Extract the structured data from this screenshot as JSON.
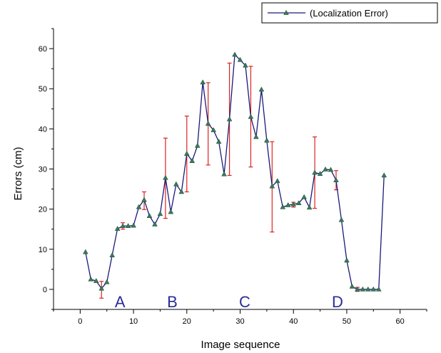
{
  "chart_data": {
    "type": "line",
    "title": "",
    "xlabel": "Image sequence",
    "ylabel": "Errors (cm)",
    "xlim": [
      -5,
      65
    ],
    "ylim": [
      -5,
      65
    ],
    "x_ticks": [
      0,
      10,
      20,
      30,
      40,
      50,
      60
    ],
    "y_ticks": [
      0,
      10,
      20,
      30,
      40,
      50,
      60
    ],
    "x_tick_labels": [
      "0",
      "10",
      "20",
      "30",
      "40",
      "50",
      "60"
    ],
    "y_tick_labels": [
      "0",
      "10",
      "20",
      "30",
      "40",
      "50",
      "60"
    ],
    "grid": false,
    "legend_position": "top-right",
    "colors": {
      "line": "#1a1a7a",
      "marker": "#3a7a5a",
      "error_bar": "#dd2222",
      "region_label": "#2b2b9a"
    },
    "series": [
      {
        "name": "(Localization Error)",
        "marker": "triangle",
        "x": [
          1,
          2,
          3,
          4,
          5,
          6,
          7,
          8,
          9,
          10,
          11,
          12,
          13,
          14,
          15,
          16,
          17,
          18,
          19,
          20,
          21,
          22,
          23,
          24,
          25,
          26,
          27,
          28,
          29,
          30,
          31,
          32,
          33,
          34,
          35,
          36,
          37,
          38,
          39,
          40,
          41,
          42,
          43,
          44,
          45,
          46,
          47,
          48,
          49,
          50,
          51,
          52,
          53,
          54,
          55,
          56,
          57
        ],
        "y": [
          9.3,
          2.5,
          2.1,
          0.2,
          1.8,
          8.5,
          15.1,
          15.8,
          15.8,
          15.9,
          20.5,
          22.3,
          18.3,
          16.2,
          18.8,
          27.8,
          19.3,
          26.2,
          24.3,
          33.8,
          32.0,
          35.8,
          51.6,
          41.3,
          39.7,
          36.8,
          28.7,
          42.4,
          58.5,
          57.2,
          55.8,
          43.0,
          38.0,
          49.8,
          37.1,
          25.7,
          27.0,
          20.5,
          21.0,
          21.2,
          21.5,
          23.0,
          20.4,
          29.1,
          28.8,
          29.9,
          29.8,
          27.2,
          17.3,
          7.2,
          0.7,
          0,
          0,
          0,
          0,
          0,
          28.4
        ]
      }
    ],
    "error_bars": [
      {
        "x": 4,
        "low": -2.2,
        "high": 2.0
      },
      {
        "x": 8,
        "low": 15.0,
        "high": 16.6
      },
      {
        "x": 12,
        "low": 19.9,
        "high": 24.3
      },
      {
        "x": 16,
        "low": 17.7,
        "high": 37.7
      },
      {
        "x": 20,
        "low": 24.3,
        "high": 43.2
      },
      {
        "x": 24,
        "low": 31.0,
        "high": 51.5
      },
      {
        "x": 28,
        "low": 28.4,
        "high": 56.4
      },
      {
        "x": 32,
        "low": 30.5,
        "high": 55.6
      },
      {
        "x": 36,
        "low": 14.3,
        "high": 36.8
      },
      {
        "x": 40,
        "low": 20.5,
        "high": 21.7
      },
      {
        "x": 44,
        "low": 20.2,
        "high": 38.0
      },
      {
        "x": 48,
        "low": 24.8,
        "high": 29.6
      },
      {
        "x": 52,
        "low": -0.5,
        "high": 0.5
      }
    ],
    "annotations": [
      {
        "text": "A",
        "x": 6.5,
        "y": -3
      },
      {
        "text": "B",
        "x": 16.3,
        "y": -3
      },
      {
        "text": "C",
        "x": 29.8,
        "y": -3
      },
      {
        "text": "D",
        "x": 47.2,
        "y": -3
      }
    ]
  }
}
